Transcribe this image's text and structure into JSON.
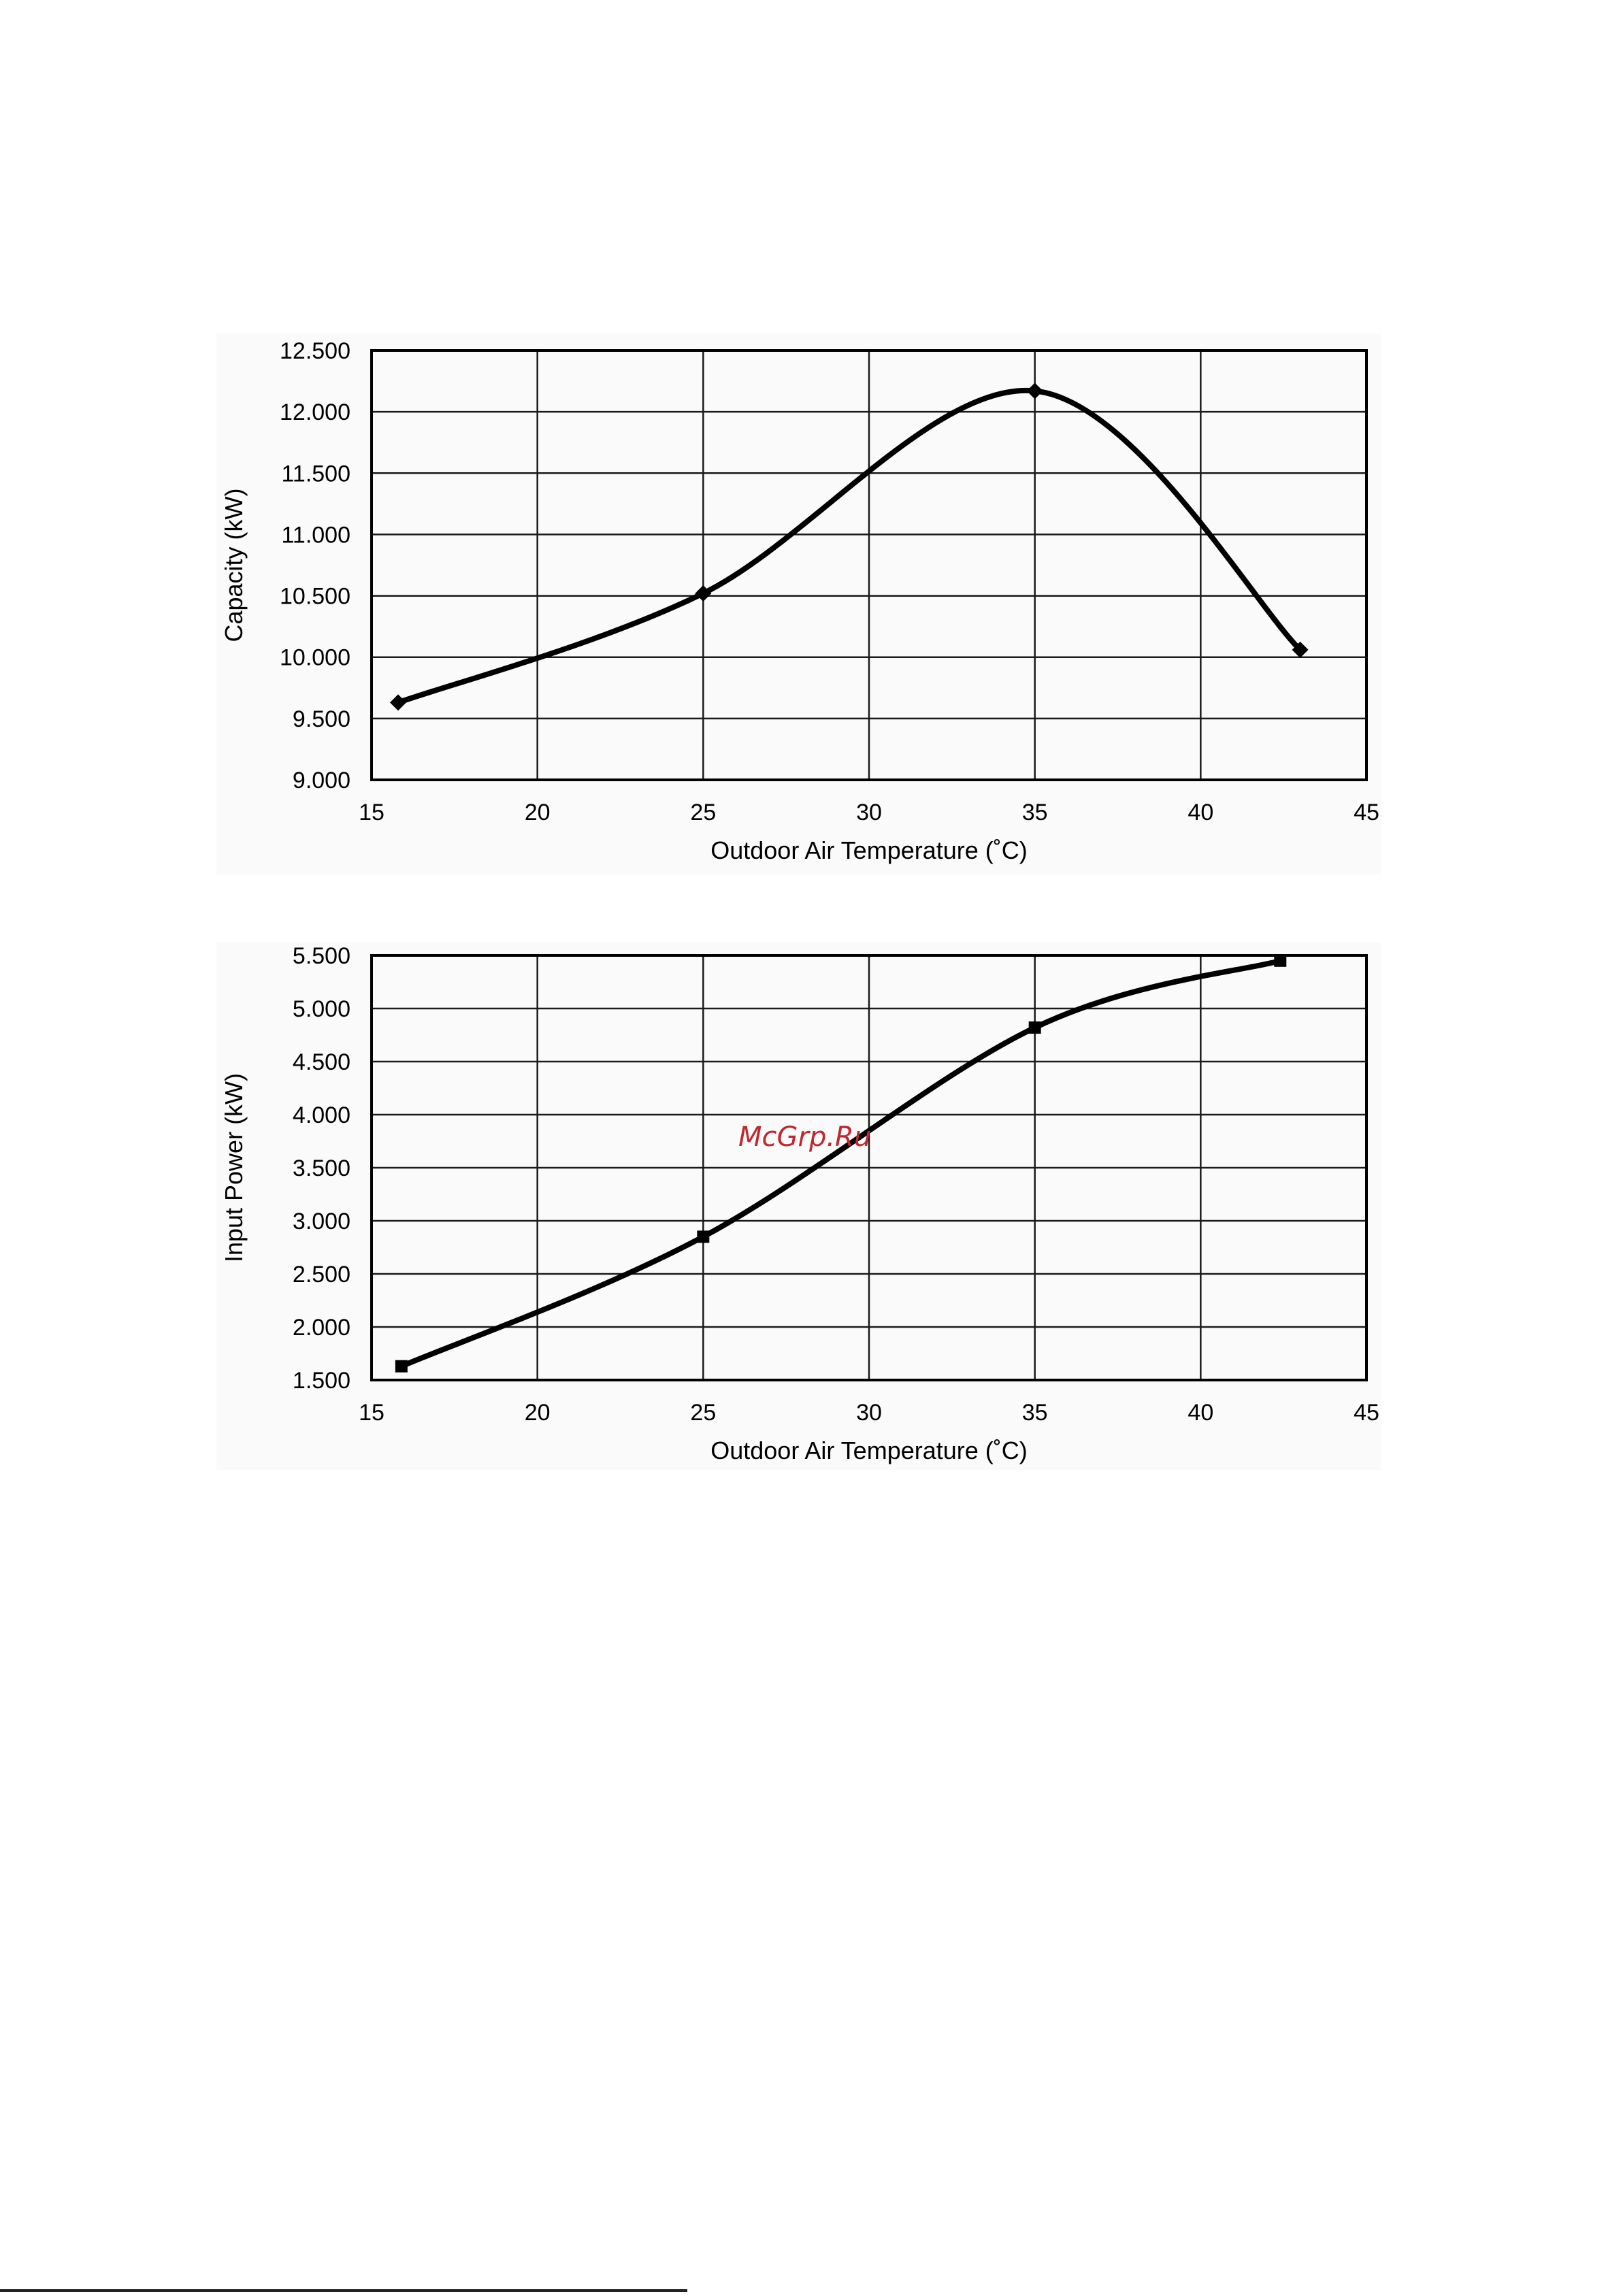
{
  "watermark": "McGrp.Ru",
  "colors": {
    "line": "#000000",
    "grid": "#1a1a1a",
    "plot_bg": "#fafafa",
    "watermark": "#c0282d"
  },
  "chart_data": [
    {
      "type": "line",
      "title": "",
      "xlabel": "Outdoor Air Temperature (˚C)",
      "ylabel": "Capacity (kW)",
      "xlim": [
        15,
        45
      ],
      "ylim": [
        9.0,
        12.5
      ],
      "xticks": [
        15,
        20,
        25,
        30,
        35,
        40,
        45
      ],
      "yticks": [
        9.0,
        9.5,
        10.0,
        10.5,
        11.0,
        11.5,
        12.0,
        12.5
      ],
      "x_tick_labels": [
        "15",
        "20",
        "25",
        "30",
        "35",
        "40",
        "45"
      ],
      "y_tick_labels": [
        "9.000",
        "9.500",
        "10.000",
        "10.500",
        "11.000",
        "11.500",
        "12.000",
        "12.500"
      ],
      "grid": true,
      "marker": "diamond",
      "series": [
        {
          "x": [
            15.8,
            25,
            35,
            43
          ],
          "y": [
            9.63,
            10.52,
            12.17,
            10.06
          ]
        }
      ]
    },
    {
      "type": "line",
      "title": "",
      "xlabel": "Outdoor Air Temperature (˚C)",
      "ylabel": "Input Power (kW)",
      "xlim": [
        15,
        45
      ],
      "ylim": [
        1.5,
        5.5
      ],
      "xticks": [
        15,
        20,
        25,
        30,
        35,
        40,
        45
      ],
      "yticks": [
        1.5,
        2.0,
        2.5,
        3.0,
        3.5,
        4.0,
        4.5,
        5.0,
        5.5
      ],
      "x_tick_labels": [
        "15",
        "20",
        "25",
        "30",
        "35",
        "40",
        "45"
      ],
      "y_tick_labels": [
        "1.500",
        "2.000",
        "2.500",
        "3.000",
        "3.500",
        "4.000",
        "4.500",
        "5.000",
        "5.500"
      ],
      "grid": true,
      "marker": "square",
      "series": [
        {
          "x": [
            15.9,
            25,
            35,
            42.4
          ],
          "y": [
            1.63,
            2.85,
            4.82,
            5.45
          ]
        }
      ]
    }
  ]
}
